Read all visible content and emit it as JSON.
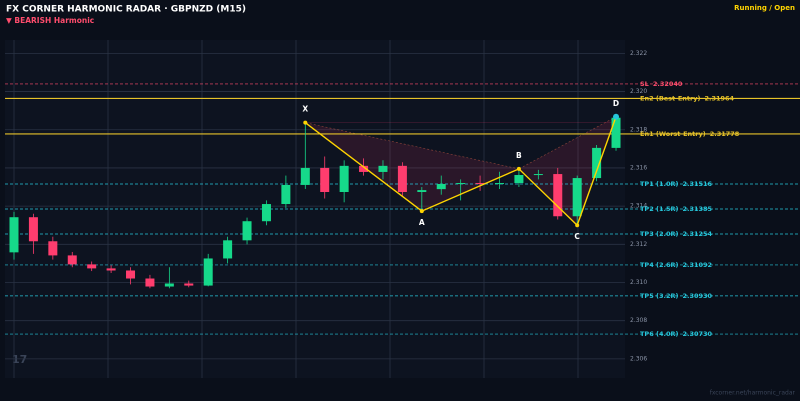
{
  "header": {
    "title": "FX CORNER HARMONIC RADAR  ·  GBPNZD (M15)",
    "signal": "▼ BEARISH  Harmonic",
    "status": "Running / Open",
    "watermark": "17",
    "footer": "fxcorner.net/harmonic_radar"
  },
  "chart_data": {
    "type": "candlestick",
    "up_color": "#16d98a",
    "down_color": "#ff3d6e",
    "ylim": [
      2.305,
      2.3227
    ],
    "yticks": [
      2.322,
      {
        "value": 2.32,
        "label": "2.320"
      },
      2.318,
      2.316,
      2.314,
      2.312,
      {
        "value": 2.31,
        "label": "2.310"
      },
      2.308,
      2.306
    ],
    "grid": true,
    "candles": [
      [
        2.31158,
        2.3137,
        2.3112,
        2.31342
      ],
      [
        2.31342,
        2.3136,
        2.3115,
        2.31216
      ],
      [
        2.31216,
        2.3124,
        2.3112,
        2.31142
      ],
      [
        2.31142,
        2.3116,
        2.3108,
        2.31095
      ],
      [
        2.31095,
        2.3111,
        2.3106,
        2.31074
      ],
      [
        2.31074,
        2.3109,
        2.3105,
        2.31063
      ],
      [
        2.31063,
        2.3108,
        2.3099,
        2.31021
      ],
      [
        2.31021,
        2.3104,
        2.3097,
        2.30979
      ],
      [
        2.30979,
        2.3108,
        2.3097,
        2.30995
      ],
      [
        2.30995,
        2.3101,
        2.30975,
        2.30984
      ],
      [
        2.30984,
        2.3115,
        2.3098,
        2.31126
      ],
      [
        2.31126,
        2.3124,
        2.311,
        2.31221
      ],
      [
        2.31221,
        2.3134,
        2.312,
        2.31321
      ],
      [
        2.31321,
        2.3143,
        2.313,
        2.31411
      ],
      [
        2.31411,
        2.3156,
        2.3139,
        2.31511
      ],
      [
        2.31511,
        2.31837,
        2.3149,
        2.316
      ],
      [
        2.316,
        2.3166,
        2.3144,
        2.31474
      ],
      [
        2.31474,
        2.3164,
        2.3142,
        2.31611
      ],
      [
        2.31611,
        2.3165,
        2.3156,
        2.31579
      ],
      [
        2.31579,
        2.3164,
        2.3154,
        2.31611
      ],
      [
        2.31611,
        2.3163,
        2.3145,
        2.31474
      ],
      [
        2.31474,
        2.315,
        2.31374,
        2.31484
      ],
      [
        2.31489,
        2.3156,
        2.3146,
        2.31516
      ],
      [
        2.31516,
        2.3154,
        2.3143,
        2.31521
      ],
      [
        2.31521,
        2.3156,
        2.3148,
        2.31516
      ],
      [
        2.31516,
        2.3158,
        2.3149,
        2.31521
      ],
      [
        2.31521,
        2.31595,
        2.315,
        2.31563
      ],
      [
        2.31563,
        2.3159,
        2.3154,
        2.31568
      ],
      [
        2.31568,
        2.316,
        2.3133,
        2.31347
      ],
      [
        2.31347,
        2.3156,
        2.313,
        2.31547
      ],
      [
        2.31547,
        2.3172,
        2.3153,
        2.31705
      ],
      [
        2.31705,
        2.3188,
        2.3169,
        2.31863
      ]
    ],
    "pattern": [
      {
        "label": "X",
        "index": 15,
        "value": 2.31837
      },
      {
        "label": "A",
        "index": 21,
        "value": 2.31374
      },
      {
        "label": "B",
        "index": 26,
        "value": 2.31595
      },
      {
        "label": "C",
        "index": 29,
        "value": 2.313
      },
      {
        "label": "D",
        "index": 31,
        "value": 2.31868
      }
    ],
    "levels": [
      {
        "name": "SL",
        "value": 2.3204,
        "value_label": "2.32040",
        "color": "#ff4d6d",
        "dashed": true
      },
      {
        "name": "En2 (Best-Entry)",
        "value": 2.31964,
        "value_label": "2.31964",
        "color": "#e6c229",
        "dashed": false
      },
      {
        "name": "En1 (Worst-Entry)",
        "value": 2.31778,
        "value_label": "2.31778",
        "color": "#e6c229",
        "dashed": false
      },
      {
        "name": "TP1 (1.0R)",
        "value": 2.31516,
        "value_label": "2.31516",
        "color": "#26c6da",
        "dashed": true
      },
      {
        "name": "TP2 (1.5R)",
        "value": 2.31385,
        "value_label": "2.31385",
        "color": "#26c6da",
        "dashed": true
      },
      {
        "name": "TP3 (2.0R)",
        "value": 2.31254,
        "value_label": "2.31254",
        "color": "#26c6da",
        "dashed": true
      },
      {
        "name": "TP4 (2.6R)",
        "value": 2.31092,
        "value_label": "2.31092",
        "color": "#26c6da",
        "dashed": true
      },
      {
        "name": "TP5 (3.2R)",
        "value": 2.3093,
        "value_label": "2.30930",
        "color": "#26c6da",
        "dashed": true
      },
      {
        "name": "TP6 (4.0R)",
        "value": 2.3073,
        "value_label": "2.30730",
        "color": "#26c6da",
        "dashed": true
      }
    ]
  }
}
